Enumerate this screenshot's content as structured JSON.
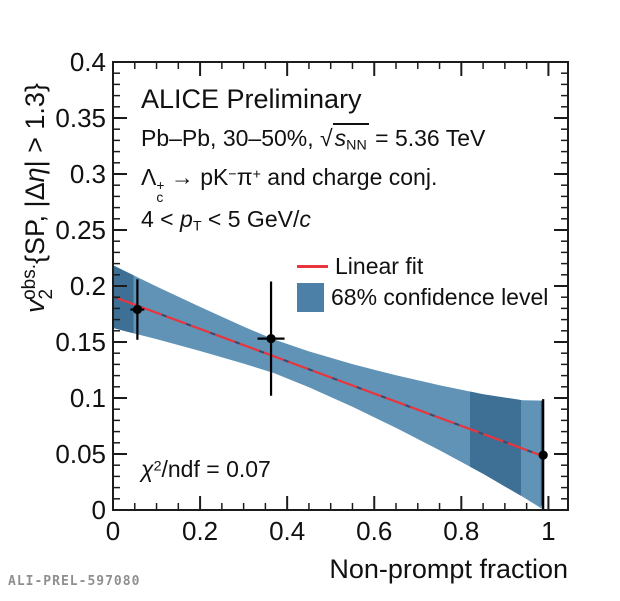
{
  "annotations": {
    "alice": "ALICE Preliminary",
    "system_html": "Pb&#8211;Pb, 30&#8211;50%, <span class='sqrt'>&#8730;<span class='ol'><i>s</i><sub>NN</sub></span></span> = 5.36 TeV",
    "decay_html": "&#923;<span class='stk'><span>+</span><span>c</span></span> &#8594; pK<sup>&#8722;</sup>&#960;<sup>+</sup> and charge conj.",
    "pt_html": "4 &lt; <i>p</i><sub>T</sub> &lt; 5 GeV/<i>c</i>",
    "chi2_html": "<i>&#967;</i><sup>2</sup>/ndf = 0.07"
  },
  "watermark": "ALI-PREL-597080",
  "chart_data": {
    "type": "scatter",
    "title": "",
    "xlabel": "Non-prompt fraction",
    "ylabel": "v_2^{obs.}{SP, |Δη| > 1.3}",
    "ylabel_parts": [
      {
        "t": "v",
        "italic": true
      },
      {
        "t": "2",
        "dy": 8,
        "size": 19
      },
      {
        "t": "obs.",
        "dx": -11,
        "dy": -17,
        "size": 19
      },
      {
        "t": "{SP, |Δ",
        "dy": 9
      },
      {
        "t": "η",
        "italic": true
      },
      {
        "t": "| > 1.3}"
      }
    ],
    "xlim": [
      0,
      1.045
    ],
    "ylim": [
      0,
      0.4
    ],
    "grid": false,
    "x_major": [
      0,
      0.2,
      0.4,
      0.6,
      0.8,
      1
    ],
    "x_tick_labels": [
      "0",
      "0.2",
      "0.4",
      "0.6",
      "0.8",
      "1"
    ],
    "x_minor_step": 0.05,
    "y_major": [
      0,
      0.05,
      0.1,
      0.15,
      0.2,
      0.25,
      0.3,
      0.35,
      0.4
    ],
    "y_tick_labels": [
      "0",
      "0.05",
      "0.1",
      "0.15",
      "0.2",
      "0.25",
      "0.3",
      "0.35",
      "0.4"
    ],
    "y_minor_step": 0.01,
    "legend": [
      {
        "label": "Linear fit",
        "type": "line"
      },
      {
        "label": "68% confidence level",
        "type": "box"
      }
    ],
    "points": [
      {
        "x": 0.056,
        "y": 0.179,
        "ey": 0.027,
        "ex": 0.016
      },
      {
        "x": 0.363,
        "y": 0.153,
        "ey": 0.051,
        "ex": 0.031
      },
      {
        "x": 0.988,
        "y": 0.049,
        "ey": 0.05,
        "ex": 0.008
      }
    ],
    "fit": {
      "x0": 0,
      "y0": 0.1905,
      "x1": 0.988,
      "y1": 0.048,
      "chi2_ndf": "0.07"
    },
    "band": {
      "x": [
        0,
        0.1,
        0.2,
        0.3,
        0.37,
        0.45,
        0.55,
        0.65,
        0.75,
        0.85,
        0.94,
        0.99
      ],
      "upper": [
        0.2185,
        0.1996,
        0.1814,
        0.1637,
        0.1522,
        0.1416,
        0.1302,
        0.1203,
        0.1114,
        0.1034,
        0.098,
        0.0977
      ],
      "lower": [
        0.1625,
        0.1526,
        0.142,
        0.1307,
        0.1222,
        0.1096,
        0.0922,
        0.0733,
        0.0534,
        0.0324,
        0.012,
        0.0
      ],
      "dark_regions": [
        [
          0,
          0.047
        ],
        [
          0.82,
          0.937
        ]
      ],
      "edge_line": {
        "x": 0.985,
        "y1": 0.0977,
        "y2": 0.004
      }
    },
    "colors": {
      "band_light": "#6093b6",
      "band_dark": "#3e6f95",
      "fit_line": "#e8353e",
      "fit_dash": "#2d4f76",
      "swatch": "#4d80a7",
      "marker": "#000000",
      "frame": "#1c1c1c"
    }
  }
}
